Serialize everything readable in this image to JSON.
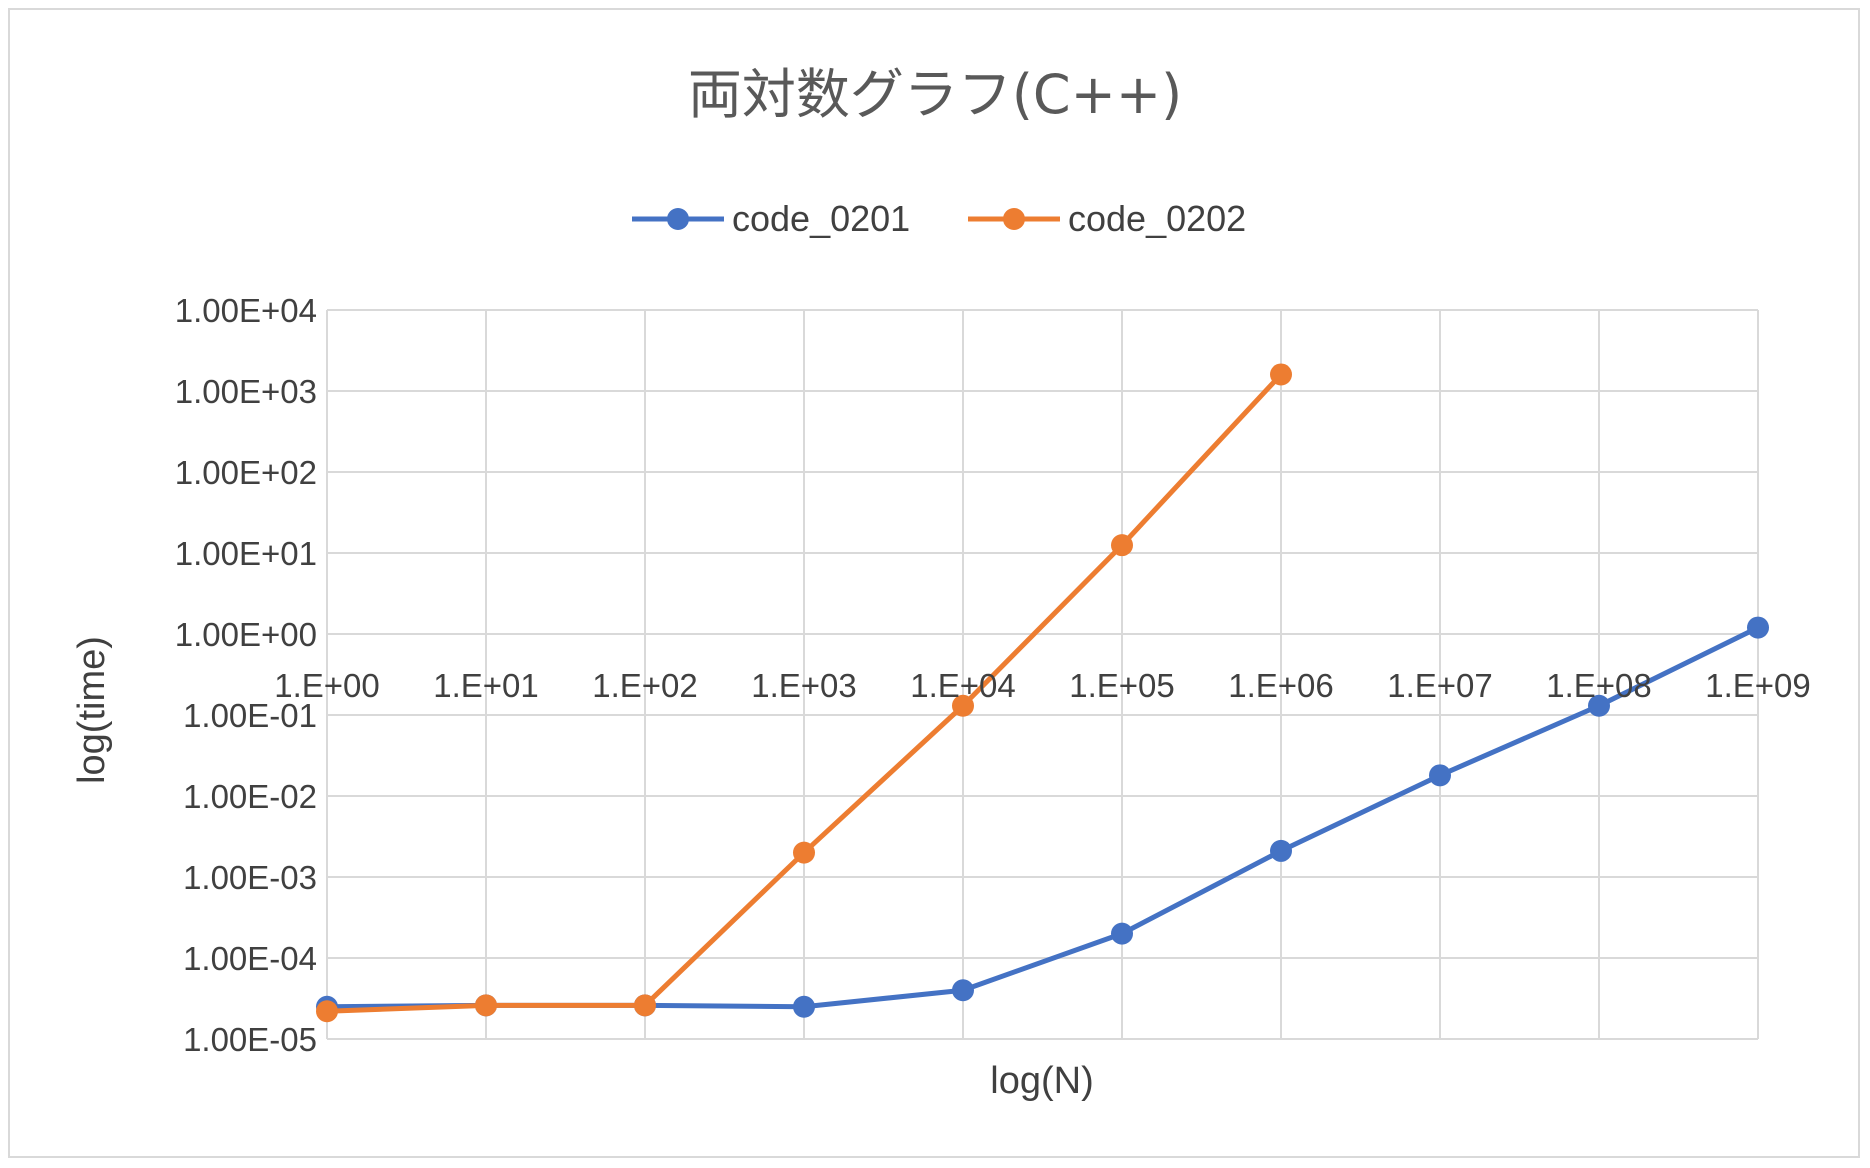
{
  "chart_data": {
    "type": "line",
    "title": "両対数グラフ(C++)",
    "xlabel": "log(N)",
    "ylabel": "log(time)",
    "x_scale": "log",
    "y_scale": "log",
    "x": [
      1,
      10,
      100,
      1000,
      10000,
      100000,
      1000000,
      10000000,
      100000000,
      1000000000
    ],
    "x_tick_labels": [
      "1.E+00",
      "1.E+01",
      "1.E+02",
      "1.E+03",
      "1.E+04",
      "1.E+05",
      "1.E+06",
      "1.E+07",
      "1.E+08",
      "1.E+09"
    ],
    "y_tick_values": [
      1e-05,
      0.0001,
      0.001,
      0.01,
      0.1,
      1,
      10,
      100,
      1000,
      10000
    ],
    "y_tick_labels": [
      "1.00E-05",
      "1.00E-04",
      "1.00E-03",
      "1.00E-02",
      "1.00E-01",
      "1.00E+00",
      "1.00E+01",
      "1.00E+02",
      "1.00E+03",
      "1.00E+04"
    ],
    "ylim": [
      1e-05,
      10000
    ],
    "xlim": [
      1,
      1000000000
    ],
    "grid": true,
    "legend_position": "top-center",
    "x_axis_crosses_y_at": 1,
    "series": [
      {
        "name": "code_0201",
        "color": "#4472C4",
        "values": [
          2.5e-05,
          2.6e-05,
          2.6e-05,
          2.5e-05,
          4e-05,
          0.0002,
          0.0021,
          0.018,
          0.13,
          1.2
        ]
      },
      {
        "name": "code_0202",
        "color": "#ED7D31",
        "values": [
          2.2e-05,
          2.6e-05,
          2.6e-05,
          0.002,
          0.13,
          12.5,
          1600,
          null,
          null,
          null
        ]
      }
    ]
  }
}
